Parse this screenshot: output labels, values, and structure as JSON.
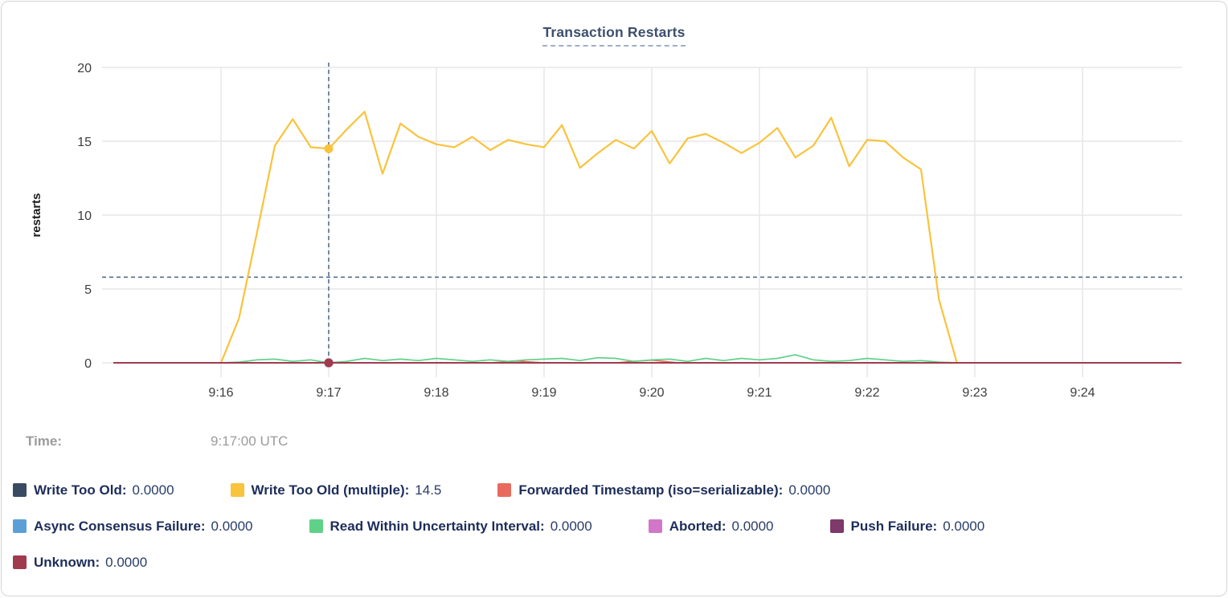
{
  "title": "Transaction Restarts",
  "tooltip": {
    "time_label": "Time:",
    "time_value": "9:17:00 UTC"
  },
  "chart_data": {
    "type": "line",
    "title": "Transaction Restarts",
    "xlabel": "",
    "ylabel": "restarts",
    "ylim": [
      0,
      20
    ],
    "yticks": [
      0,
      5,
      10,
      15,
      20
    ],
    "x_axis": {
      "tick_labels": [
        "9:16",
        "9:17",
        "9:18",
        "9:19",
        "9:20",
        "9:21",
        "9:22",
        "9:23",
        "9:24"
      ],
      "tick_seconds": [
        60,
        120,
        180,
        240,
        300,
        360,
        420,
        480,
        540
      ],
      "domain_seconds": [
        0,
        595
      ],
      "time_origin": "9:15:00 UTC"
    },
    "grid": true,
    "legend_position": "bottom",
    "hover": {
      "time": "9:17:00 UTC",
      "x_sec": 120,
      "hline_value": 5.8,
      "crosshair_color": "#53708E"
    },
    "colors": {
      "grid": "#e7e7e7",
      "axis_text": "#3c3c3c",
      "title_text": "#3d4f6e",
      "legend_text": "#1d2d5a"
    },
    "series": [
      {
        "name": "Write Too Old",
        "color": "#3A4A63",
        "value_at_hover": "0.0000",
        "width": 1.6,
        "points": [
          [
            0,
            0
          ],
          [
            595,
            0
          ]
        ]
      },
      {
        "name": "Write Too Old (multiple)",
        "color": "#F9C33C",
        "value_at_hover": "14.5",
        "width": 2.2,
        "points": [
          [
            60,
            0
          ],
          [
            70,
            3.0
          ],
          [
            80,
            8.8
          ],
          [
            90,
            14.7
          ],
          [
            100,
            16.5
          ],
          [
            110,
            14.6
          ],
          [
            120,
            14.5
          ],
          [
            130,
            15.8
          ],
          [
            140,
            17.0
          ],
          [
            150,
            12.8
          ],
          [
            160,
            16.2
          ],
          [
            170,
            15.3
          ],
          [
            180,
            14.8
          ],
          [
            190,
            14.6
          ],
          [
            200,
            15.3
          ],
          [
            210,
            14.4
          ],
          [
            220,
            15.1
          ],
          [
            230,
            14.8
          ],
          [
            240,
            14.6
          ],
          [
            250,
            16.1
          ],
          [
            260,
            13.2
          ],
          [
            270,
            14.2
          ],
          [
            280,
            15.1
          ],
          [
            290,
            14.5
          ],
          [
            300,
            15.7
          ],
          [
            310,
            13.5
          ],
          [
            320,
            15.2
          ],
          [
            330,
            15.5
          ],
          [
            340,
            14.9
          ],
          [
            350,
            14.2
          ],
          [
            360,
            14.9
          ],
          [
            370,
            15.9
          ],
          [
            380,
            13.9
          ],
          [
            390,
            14.7
          ],
          [
            400,
            16.6
          ],
          [
            410,
            13.3
          ],
          [
            420,
            15.1
          ],
          [
            430,
            15.0
          ],
          [
            440,
            13.9
          ],
          [
            450,
            13.1
          ],
          [
            460,
            4.3
          ],
          [
            470,
            0
          ]
        ]
      },
      {
        "name": "Forwarded Timestamp (iso=serializable)",
        "color": "#E8695D",
        "value_at_hover": "0.0000",
        "width": 1.6,
        "points": [
          [
            0,
            0
          ],
          [
            210,
            0
          ],
          [
            225,
            0.12
          ],
          [
            240,
            0
          ],
          [
            280,
            0
          ],
          [
            290,
            0.1
          ],
          [
            300,
            0.18
          ],
          [
            315,
            0
          ],
          [
            595,
            0
          ]
        ]
      },
      {
        "name": "Async Consensus Failure",
        "color": "#5C9FD6",
        "value_at_hover": "0.0000",
        "width": 1.6,
        "points": [
          [
            0,
            0
          ],
          [
            595,
            0
          ]
        ]
      },
      {
        "name": "Read Within Uncertainty Interval",
        "color": "#60D189",
        "value_at_hover": "0.0000",
        "width": 1.7,
        "points": [
          [
            60,
            0
          ],
          [
            70,
            0.05
          ],
          [
            80,
            0.2
          ],
          [
            90,
            0.25
          ],
          [
            100,
            0.1
          ],
          [
            110,
            0.2
          ],
          [
            120,
            0
          ],
          [
            130,
            0.1
          ],
          [
            140,
            0.3
          ],
          [
            150,
            0.15
          ],
          [
            160,
            0.25
          ],
          [
            170,
            0.15
          ],
          [
            180,
            0.3
          ],
          [
            190,
            0.2
          ],
          [
            200,
            0.1
          ],
          [
            210,
            0.2
          ],
          [
            220,
            0.1
          ],
          [
            230,
            0.2
          ],
          [
            240,
            0.25
          ],
          [
            250,
            0.3
          ],
          [
            260,
            0.15
          ],
          [
            270,
            0.35
          ],
          [
            280,
            0.3
          ],
          [
            290,
            0.1
          ],
          [
            300,
            0.2
          ],
          [
            310,
            0.25
          ],
          [
            320,
            0.1
          ],
          [
            330,
            0.3
          ],
          [
            340,
            0.15
          ],
          [
            350,
            0.3
          ],
          [
            360,
            0.2
          ],
          [
            370,
            0.3
          ],
          [
            380,
            0.55
          ],
          [
            390,
            0.2
          ],
          [
            400,
            0.1
          ],
          [
            410,
            0.15
          ],
          [
            420,
            0.3
          ],
          [
            430,
            0.2
          ],
          [
            440,
            0.1
          ],
          [
            450,
            0.15
          ],
          [
            460,
            0.05
          ],
          [
            470,
            0
          ],
          [
            595,
            0
          ]
        ]
      },
      {
        "name": "Aborted",
        "color": "#D277C8",
        "value_at_hover": "0.0000",
        "width": 1.6,
        "points": [
          [
            0,
            0
          ],
          [
            595,
            0
          ]
        ]
      },
      {
        "name": "Push Failure",
        "color": "#7D3A6A",
        "value_at_hover": "0.0000",
        "width": 1.6,
        "points": [
          [
            0,
            0
          ],
          [
            595,
            0
          ]
        ]
      },
      {
        "name": "Unknown",
        "color": "#A03B4E",
        "value_at_hover": "0.0000",
        "width": 1.9,
        "points": [
          [
            0,
            0
          ],
          [
            595,
            0
          ]
        ]
      }
    ],
    "legend_layout": [
      [
        0,
        1,
        2
      ],
      [
        3,
        4,
        5,
        6
      ],
      [
        7
      ]
    ]
  }
}
